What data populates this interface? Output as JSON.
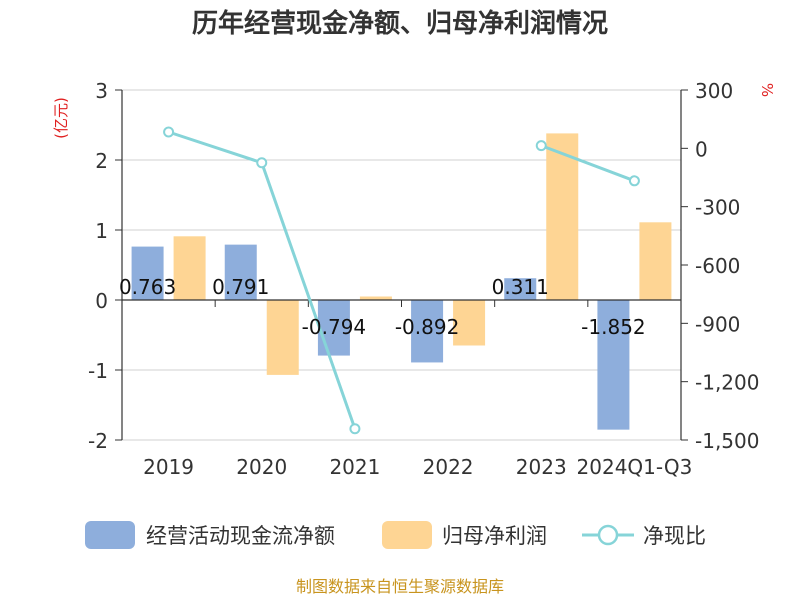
{
  "chart_data": {
    "type": "bar",
    "title": "历年经营现金净额、归母净利润情况",
    "categories": [
      "2019",
      "2020",
      "2021",
      "2022",
      "2023",
      "2024Q1-Q3"
    ],
    "left_axis": {
      "unit": "(亿元)",
      "ylim": [
        -2,
        3
      ],
      "ticks": [
        "3",
        "2",
        "1",
        "0",
        "-1",
        "-2"
      ]
    },
    "right_axis": {
      "unit": "%",
      "ylim": [
        -1500,
        300
      ],
      "ticks": [
        "300",
        "0",
        "-300",
        "-600",
        "-900",
        "-1,200",
        "-1,500"
      ]
    },
    "series": [
      {
        "name": "经营活动现金流净额",
        "type": "bar",
        "axis": "left",
        "color": "#8eaedc",
        "values": [
          0.763,
          0.791,
          -0.794,
          -0.892,
          0.311,
          -1.852
        ],
        "labels": [
          "0.763",
          "0.791",
          "-0.794",
          "-0.892",
          "0.311",
          "-1.852"
        ]
      },
      {
        "name": "归母净利润",
        "type": "bar",
        "axis": "left",
        "color": "#fed594",
        "values": [
          0.91,
          -1.07,
          0.05,
          -0.65,
          2.38,
          1.11
        ]
      },
      {
        "name": "净现比",
        "type": "line",
        "axis": "right",
        "color": "#86d4d8",
        "values": [
          84,
          -74,
          -1442,
          null,
          14,
          -167
        ]
      }
    ],
    "grid": true,
    "legend": "bottom"
  },
  "source": "制图数据来自恒生聚源数据库"
}
